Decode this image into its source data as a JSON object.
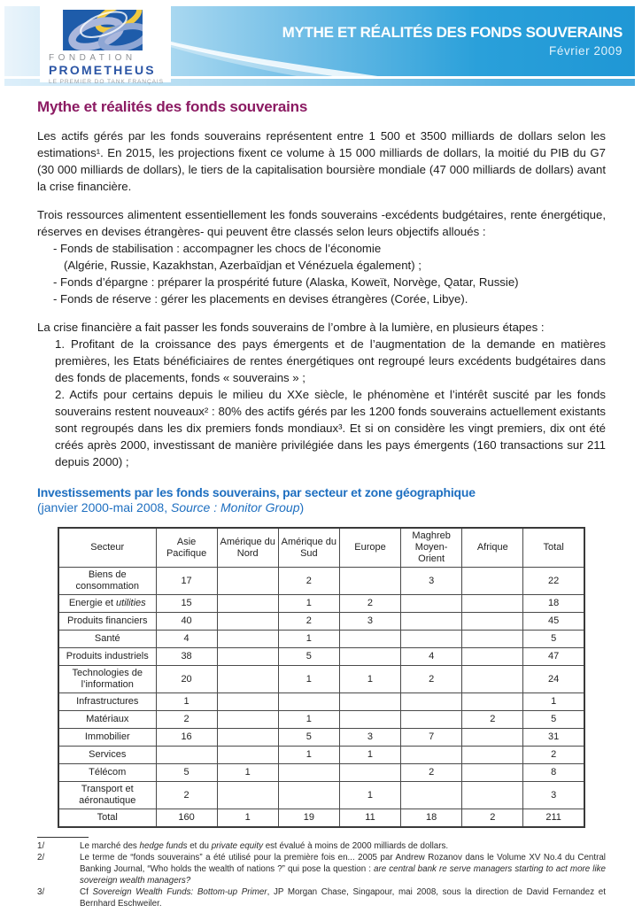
{
  "header": {
    "logo": {
      "line1": "FONDATION",
      "line2": "PROMETHEUS",
      "tagline": "LE PREMIER DO TANK FRANÇAIS"
    },
    "banner_title": "MYTHE ET RÉALITÉS DES FONDS SOUVERAINS",
    "banner_date": "Février 2009"
  },
  "colors": {
    "banner_blue": "#1f97d5",
    "banner_light": "#eaf4fb",
    "title_magenta": "#8b1a62",
    "heading_blue": "#1e6fc0",
    "logo_blue": "#2b55a5",
    "logo_yellow": "#f0c940",
    "logo_lavender": "#aab7dc"
  },
  "page": {
    "title": "Mythe et réalités des fonds souverains",
    "paragraph1": "Les actifs gérés par les fonds souverains représentent entre 1 500 et 3500 milliards de dollars selon les estimations¹. En 2015, les projections fixent ce volume à 15 000 milliards de dollars, la moitié du PIB du G7 (30 000 milliards de dollars), le tiers de la capitalisation boursière mondiale (47 000 milliards de dollars) avant la crise financière.",
    "paragraph2_intro": "Trois ressources alimentent essentiellement les fonds souverains -excédents budgétaires, rente énergétique, réserves en devises étrangères- qui peuvent être classés selon leurs objectifs alloués :",
    "paragraph2_items": [
      {
        "text": "- Fonds de stabilisation : accompagner les chocs de l’économie",
        "indent": 1
      },
      {
        "text": "(Algérie, Russie, Kazakhstan, Azerbaïdjan et Vénézuela également) ;",
        "indent": 2
      },
      {
        "text": "- Fonds d’épargne : préparer la prospérité future (Alaska, Koweït, Norvège, Qatar, Russie)",
        "indent": 1
      },
      {
        "text": "- Fonds de réserve : gérer les placements en devises étrangères (Corée, Libye).",
        "indent": 1
      }
    ],
    "paragraph3_intro": "La crise financière a fait passer les fonds souverains de l’ombre à la lumière, en plusieurs étapes :",
    "paragraph3_items": [
      "1. Profitant de la croissance des pays émergents et de l’augmentation de la demande en matières premières, les Etats bénéficiaires de rentes énergétiques ont regroupé leurs excédents budgétaires dans des fonds de placements, fonds « souverains » ;",
      "2. Actifs pour certains depuis le milieu du XXe siècle, le phénomène et l’intérêt suscité par les fonds souverains restent nouveaux² : 80% des actifs gérés par les 1200 fonds souverains actuellement existants sont regroupés dans les dix premiers fonds mondiaux³. Et si on considère les vingt premiers, dix ont été créés après 2000, investissant de manière privilégiée dans les pays émergents (160 transactions sur 211 depuis 2000) ;"
    ]
  },
  "table_section": {
    "heading": "Investissements par les fonds souverains, par secteur et zone géographique",
    "subtitle_segments": [
      {
        "t": "(janvier 2000-mai 2008, ",
        "i": false
      },
      {
        "t": "Source : Monitor Group",
        "i": true
      },
      {
        "t": ")",
        "i": false
      }
    ]
  },
  "table": {
    "columns": [
      "Secteur",
      "Asie Pacifique",
      "Amérique du Nord",
      "Amérique du Sud",
      "Europe",
      "Maghreb Moyen-Orient",
      "Afrique",
      "Total"
    ],
    "rows": [
      {
        "label": "Biens de consommation",
        "values": [
          "17",
          "",
          "2",
          "",
          "3",
          "",
          "22"
        ]
      },
      {
        "label": "Energie et ",
        "label_italic": "utilities",
        "values": [
          "15",
          "",
          "1",
          "2",
          "",
          "",
          "18"
        ]
      },
      {
        "label": "Produits financiers",
        "values": [
          "40",
          "",
          "2",
          "3",
          "",
          "",
          "45"
        ]
      },
      {
        "label": "Santé",
        "values": [
          "4",
          "",
          "1",
          "",
          "",
          "",
          "5"
        ]
      },
      {
        "label": "Produits industriels",
        "values": [
          "38",
          "",
          "5",
          "",
          "4",
          "",
          "47"
        ]
      },
      {
        "label": "Technologies de l’information",
        "values": [
          "20",
          "",
          "1",
          "1",
          "2",
          "",
          "24"
        ]
      },
      {
        "label": "Infrastructures",
        "values": [
          "1",
          "",
          "",
          "",
          "",
          "",
          "1"
        ]
      },
      {
        "label": "Matériaux",
        "values": [
          "2",
          "",
          "1",
          "",
          "",
          "2",
          "5"
        ]
      },
      {
        "label": "Immobilier",
        "values": [
          "16",
          "",
          "5",
          "3",
          "7",
          "",
          "31"
        ]
      },
      {
        "label": "Services",
        "values": [
          "",
          "",
          "1",
          "1",
          "",
          "",
          "2"
        ]
      },
      {
        "label": "Télécom",
        "values": [
          "5",
          "1",
          "",
          "",
          "2",
          "",
          "8"
        ]
      },
      {
        "label": "Transport et aéronautique",
        "values": [
          "2",
          "",
          "",
          "1",
          "",
          "",
          "3"
        ]
      },
      {
        "label": "Total",
        "values": [
          "160",
          "1",
          "19",
          "11",
          "18",
          "2",
          "211"
        ]
      }
    ]
  },
  "footnotes": [
    {
      "num": "1/",
      "segments": [
        {
          "t": "Le marché des ",
          "i": false
        },
        {
          "t": "hedge funds",
          "i": true
        },
        {
          "t": " et du ",
          "i": false
        },
        {
          "t": "private equity",
          "i": true
        },
        {
          "t": " est évalué à moins de 2000 milliards de dollars.",
          "i": false
        }
      ]
    },
    {
      "num": "2/",
      "segments": [
        {
          "t": "Le terme de “fonds souverains” a été utilisé pour la première fois en... 2005 par Andrew Rozanov dans le Volume XV No.4 du Central Banking Journal, “Who holds the wealth of nations ?” qui pose la question : ",
          "i": false
        },
        {
          "t": "are central bank re serve managers starting to act more like sovereign wealth managers?",
          "i": true
        }
      ]
    },
    {
      "num": "3/",
      "segments": [
        {
          "t": "Cf ",
          "i": false
        },
        {
          "t": "Sovereign Wealth Funds: Bottom-up Primer",
          "i": true
        },
        {
          "t": ", JP Morgan Chase, Singapour, mai 2008, sous la direction de David Fernandez et Bernhard Eschweiler.",
          "i": false
        }
      ]
    }
  ]
}
